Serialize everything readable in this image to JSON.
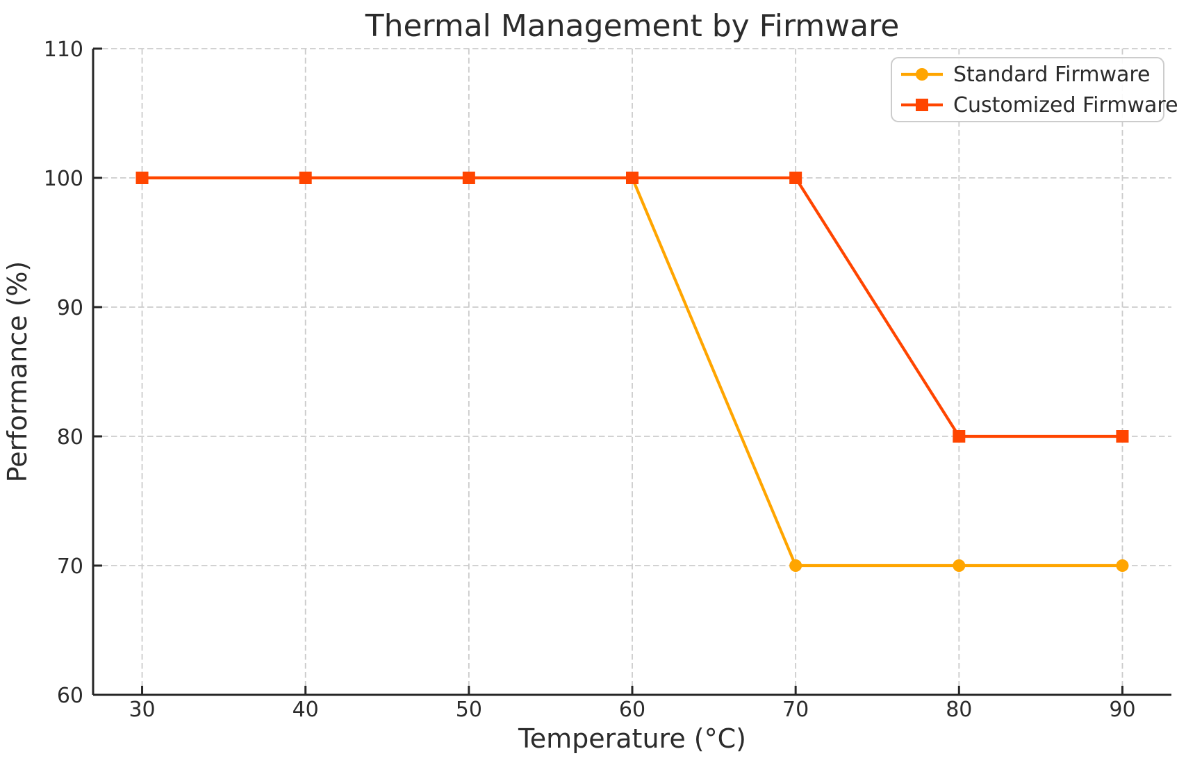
{
  "chart_data": {
    "type": "line",
    "title": "Thermal Management by Firmware",
    "xlabel": "Temperature (°C)",
    "ylabel": "Performance (%)",
    "x": [
      30,
      40,
      50,
      60,
      70,
      80,
      90
    ],
    "series": [
      {
        "name": "Standard Firmware",
        "values": [
          100,
          100,
          100,
          100,
          70,
          70,
          70
        ],
        "color": "#FFA500",
        "marker": "circle"
      },
      {
        "name": "Customized Firmware",
        "values": [
          100,
          100,
          100,
          100,
          100,
          80,
          80
        ],
        "color": "#FF4500",
        "marker": "square"
      }
    ],
    "xlim": [
      27,
      93
    ],
    "ylim": [
      60,
      110
    ],
    "x_ticks": [
      30,
      40,
      50,
      60,
      70,
      80,
      90
    ],
    "y_ticks": [
      60,
      70,
      80,
      90,
      100,
      110
    ],
    "grid": true,
    "grid_style": "dashed",
    "legend_position": "upper right",
    "colors": {
      "grid": "#cbcbcb",
      "axis": "#262626",
      "text": "#2b2b2b",
      "background": "#ffffff",
      "legend_border": "#cccccc",
      "legend_bg": "#ffffff"
    }
  }
}
